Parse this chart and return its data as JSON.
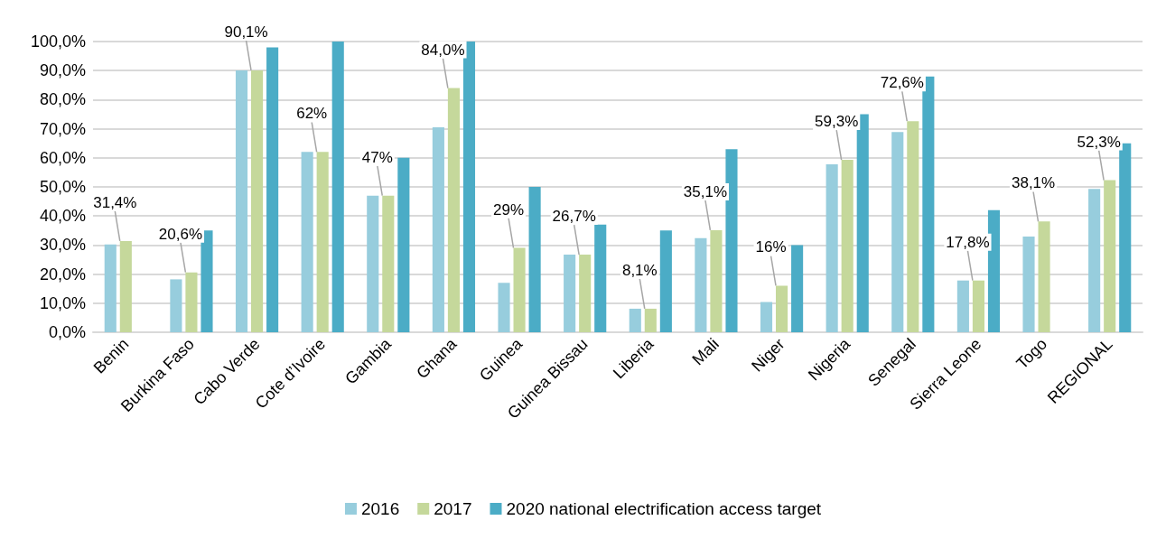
{
  "chart_data": {
    "type": "bar",
    "categories": [
      "Benin",
      "Burkina Faso",
      "Cabo Verde",
      "Cote d’Ivoire",
      "Gambia",
      "Ghana",
      "Guinea",
      "Guinea Bissau",
      "Liberia",
      "Mali",
      "Niger",
      "Nigeria",
      "Senegal",
      "Sierra Leone",
      "Togo",
      "REGIONAL"
    ],
    "series": [
      {
        "name": "2016",
        "color": "#97cddd",
        "values": [
          30.2,
          18.2,
          90.1,
          62,
          47,
          70.5,
          17,
          26.7,
          8.1,
          32.4,
          10.4,
          57.8,
          68.9,
          17.8,
          32.9,
          49.3
        ]
      },
      {
        "name": "2017",
        "color": "#c5d89b",
        "values": [
          31.4,
          20.6,
          90.1,
          62,
          47,
          84.0,
          29,
          26.7,
          8.1,
          35.1,
          16,
          59.3,
          72.6,
          17.8,
          38.1,
          52.3
        ],
        "value_labels": [
          "31,4%",
          "20,6%",
          "90,1%",
          "62%",
          "47%",
          "84,0%",
          "29%",
          "26,7%",
          "8,1%",
          "35,1%",
          "16%",
          "59,3%",
          "72,6%",
          "17,8%",
          "38,1%",
          "52,3%"
        ]
      },
      {
        "name": "2020 national electrification access target",
        "color": "#4bacc6",
        "values": [
          null,
          35,
          98,
          100,
          60,
          100,
          50,
          37,
          35,
          63,
          30,
          75,
          88,
          42,
          null,
          65
        ]
      }
    ],
    "ylim": [
      0,
      100
    ],
    "yticks": [
      {
        "value": 0,
        "label": "0,0%"
      },
      {
        "value": 10,
        "label": "10,0%"
      },
      {
        "value": 20,
        "label": "20,0%"
      },
      {
        "value": 30,
        "label": "30,0%"
      },
      {
        "value": 40,
        "label": "40,0%"
      },
      {
        "value": 50,
        "label": "50,0%"
      },
      {
        "value": 60,
        "label": "60,0%"
      },
      {
        "value": 70,
        "label": "70,0%"
      },
      {
        "value": 80,
        "label": "80,0%"
      },
      {
        "value": 90,
        "label": "90,0%"
      },
      {
        "value": 100,
        "label": "100,0%"
      }
    ],
    "grid": "y",
    "legend": "bottom"
  }
}
